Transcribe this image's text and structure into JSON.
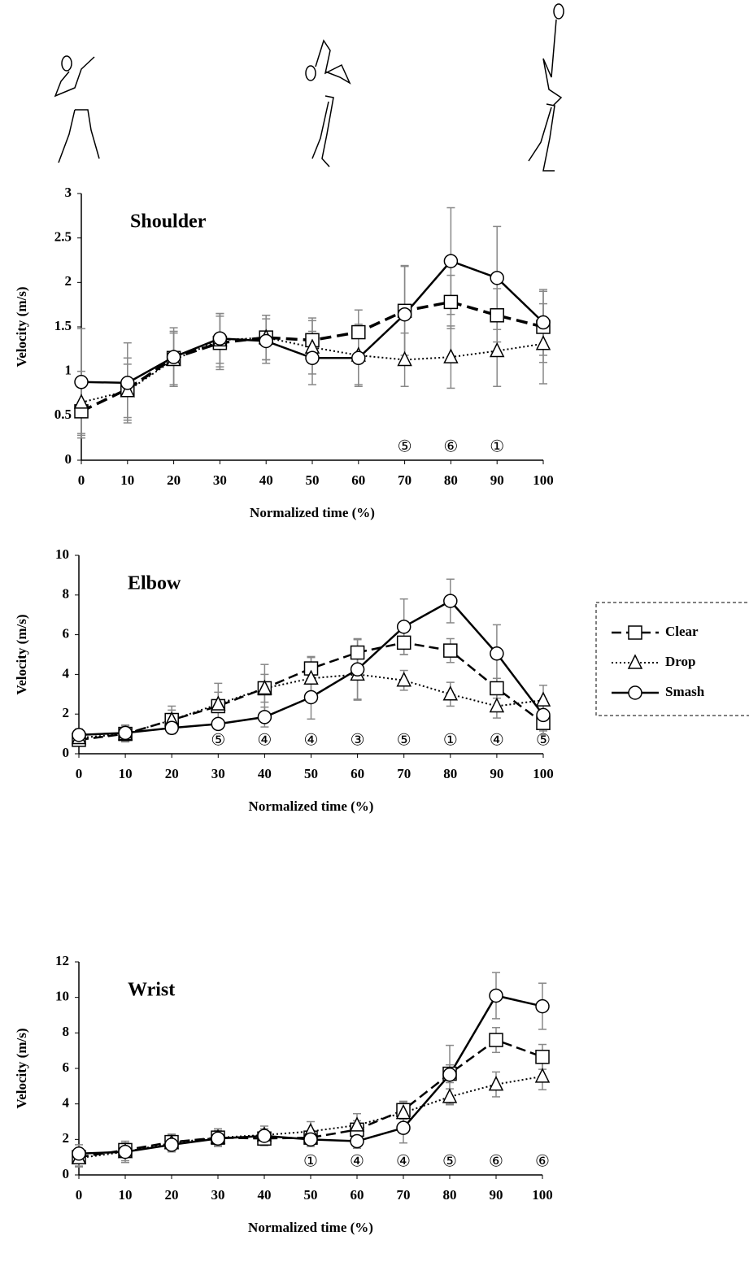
{
  "chart_data": [
    {
      "type": "line",
      "title": "Shoulder",
      "x_label": "Normalized time (%)",
      "y_label": "Velocity (m/s)",
      "x": [
        0,
        10,
        20,
        30,
        40,
        50,
        60,
        70,
        80,
        90,
        100
      ],
      "xlim": [
        0,
        100
      ],
      "xticks": [
        0,
        10,
        20,
        30,
        40,
        50,
        60,
        70,
        80,
        90,
        100
      ],
      "ylim": [
        0,
        3
      ],
      "yticks": [
        0,
        0.5,
        1,
        1.5,
        2,
        2.5,
        3
      ],
      "series": [
        {
          "color": "#000000",
          "dash": "14,7",
          "width": 3.5,
          "marker": "square",
          "values": [
            0.55,
            0.8,
            1.15,
            1.32,
            1.38,
            1.35,
            1.44,
            1.68,
            1.78,
            1.63,
            1.5
          ],
          "errors": [
            0.3,
            0.35,
            0.3,
            0.3,
            0.25,
            0.25,
            0.25,
            0.5,
            0.3,
            0.3,
            0.4
          ]
        },
        {
          "color": "#000000",
          "dash": "2,3",
          "width": 2,
          "marker": "triangle",
          "values": [
            0.65,
            0.78,
            1.13,
            1.35,
            1.38,
            1.27,
            1.18,
            1.13,
            1.16,
            1.23,
            1.31
          ],
          "errors": [
            0.35,
            0.3,
            0.3,
            0.3,
            0.25,
            0.3,
            0.35,
            0.3,
            0.35,
            0.4,
            0.45
          ]
        },
        {
          "color": "#000000",
          "dash": "",
          "width": 2.5,
          "marker": "circle",
          "values": [
            0.88,
            0.87,
            1.16,
            1.37,
            1.34,
            1.15,
            1.15,
            1.64,
            2.24,
            2.05,
            1.55
          ],
          "errors": [
            0.6,
            0.45,
            0.33,
            0.28,
            0.25,
            0.3,
            0.3,
            0.55,
            0.6,
            0.58,
            0.37
          ]
        }
      ],
      "annotations": [
        {
          "x": 70,
          "text": "⑤"
        },
        {
          "x": 80,
          "text": "⑥"
        },
        {
          "x": 90,
          "text": "①"
        }
      ]
    },
    {
      "type": "line",
      "title": "Elbow",
      "x_label": "Normalized time (%)",
      "y_label": "Velocity (m/s)",
      "x": [
        0,
        10,
        20,
        30,
        40,
        50,
        60,
        70,
        80,
        90,
        100
      ],
      "xlim": [
        0,
        100
      ],
      "xticks": [
        0,
        10,
        20,
        30,
        40,
        50,
        60,
        70,
        80,
        90,
        100
      ],
      "ylim": [
        0,
        10
      ],
      "yticks": [
        0,
        2,
        4,
        6,
        8,
        10
      ],
      "series": [
        {
          "name": "Clear",
          "color": "#000000",
          "dash": "12,6",
          "width": 2.5,
          "marker": "square",
          "values": [
            0.7,
            1.0,
            1.7,
            2.4,
            3.3,
            4.3,
            5.1,
            5.6,
            5.2,
            3.3,
            1.55
          ],
          "errors": [
            0.3,
            0.4,
            0.5,
            0.7,
            0.7,
            0.6,
            0.7,
            0.6,
            0.6,
            0.5,
            0.6
          ]
        },
        {
          "name": "Drop",
          "color": "#000000",
          "dash": "2,3",
          "width": 2,
          "marker": "triangle",
          "values": [
            0.8,
            1.0,
            1.7,
            2.5,
            3.3,
            3.8,
            4.0,
            3.7,
            3.0,
            2.4,
            2.7
          ],
          "errors": [
            0.3,
            0.4,
            0.7,
            1.05,
            1.2,
            1.05,
            1.3,
            0.5,
            0.6,
            0.6,
            0.75
          ]
        },
        {
          "name": "Smash",
          "color": "#000000",
          "dash": "",
          "width": 2.5,
          "marker": "circle",
          "values": [
            0.95,
            1.05,
            1.3,
            1.5,
            1.85,
            2.85,
            4.25,
            6.4,
            7.7,
            5.05,
            1.95
          ],
          "errors": [
            0.3,
            0.4,
            0.25,
            0.25,
            0.5,
            1.1,
            1.5,
            1.4,
            1.1,
            1.45,
            0.8
          ]
        }
      ],
      "annotations": [
        {
          "x": 30,
          "text": "⑤"
        },
        {
          "x": 40,
          "text": "④"
        },
        {
          "x": 50,
          "text": "④"
        },
        {
          "x": 60,
          "text": "③"
        },
        {
          "x": 70,
          "text": "⑤"
        },
        {
          "x": 80,
          "text": "①"
        },
        {
          "x": 90,
          "text": "④"
        },
        {
          "x": 100,
          "text": "⑤"
        }
      ]
    },
    {
      "type": "line",
      "title": "Wrist",
      "x_label": "Normalized time (%)",
      "y_label": "Velocity (m/s)",
      "x": [
        0,
        10,
        20,
        30,
        40,
        50,
        60,
        70,
        80,
        90,
        100
      ],
      "xlim": [
        0,
        100
      ],
      "xticks": [
        0,
        10,
        20,
        30,
        40,
        50,
        60,
        70,
        80,
        90,
        100
      ],
      "ylim": [
        0,
        12
      ],
      "yticks": [
        0,
        2,
        4,
        6,
        8,
        10,
        12
      ],
      "series": [
        {
          "color": "#000000",
          "dash": "12,6",
          "width": 2.5,
          "marker": "square",
          "values": [
            1.0,
            1.4,
            1.85,
            2.1,
            2.05,
            2.1,
            2.55,
            3.65,
            5.7,
            7.6,
            6.65
          ],
          "errors": [
            0.5,
            0.4,
            0.4,
            0.4,
            0.4,
            0.4,
            0.5,
            0.5,
            0.5,
            0.7,
            0.7
          ]
        },
        {
          "color": "#000000",
          "dash": "2,3",
          "width": 2,
          "marker": "triangle",
          "values": [
            0.95,
            1.3,
            1.8,
            2.1,
            2.25,
            2.45,
            2.8,
            3.5,
            4.4,
            5.1,
            5.55
          ],
          "errors": [
            0.5,
            0.6,
            0.5,
            0.5,
            0.5,
            0.55,
            0.65,
            0.6,
            0.45,
            0.7,
            0.75
          ]
        },
        {
          "color": "#000000",
          "dash": "",
          "width": 2.5,
          "marker": "circle",
          "values": [
            1.2,
            1.3,
            1.7,
            2.05,
            2.2,
            2.0,
            1.9,
            2.65,
            5.65,
            10.1,
            9.5
          ],
          "errors": [
            0.5,
            0.5,
            0.4,
            0.4,
            0.4,
            0.4,
            0.4,
            0.85,
            1.65,
            1.3,
            1.3
          ]
        }
      ],
      "annotations": [
        {
          "x": 50,
          "text": "①"
        },
        {
          "x": 60,
          "text": "④"
        },
        {
          "x": 70,
          "text": "④"
        },
        {
          "x": 80,
          "text": "⑤"
        },
        {
          "x": 90,
          "text": "⑥"
        },
        {
          "x": 100,
          "text": "⑥"
        }
      ]
    }
  ]
}
